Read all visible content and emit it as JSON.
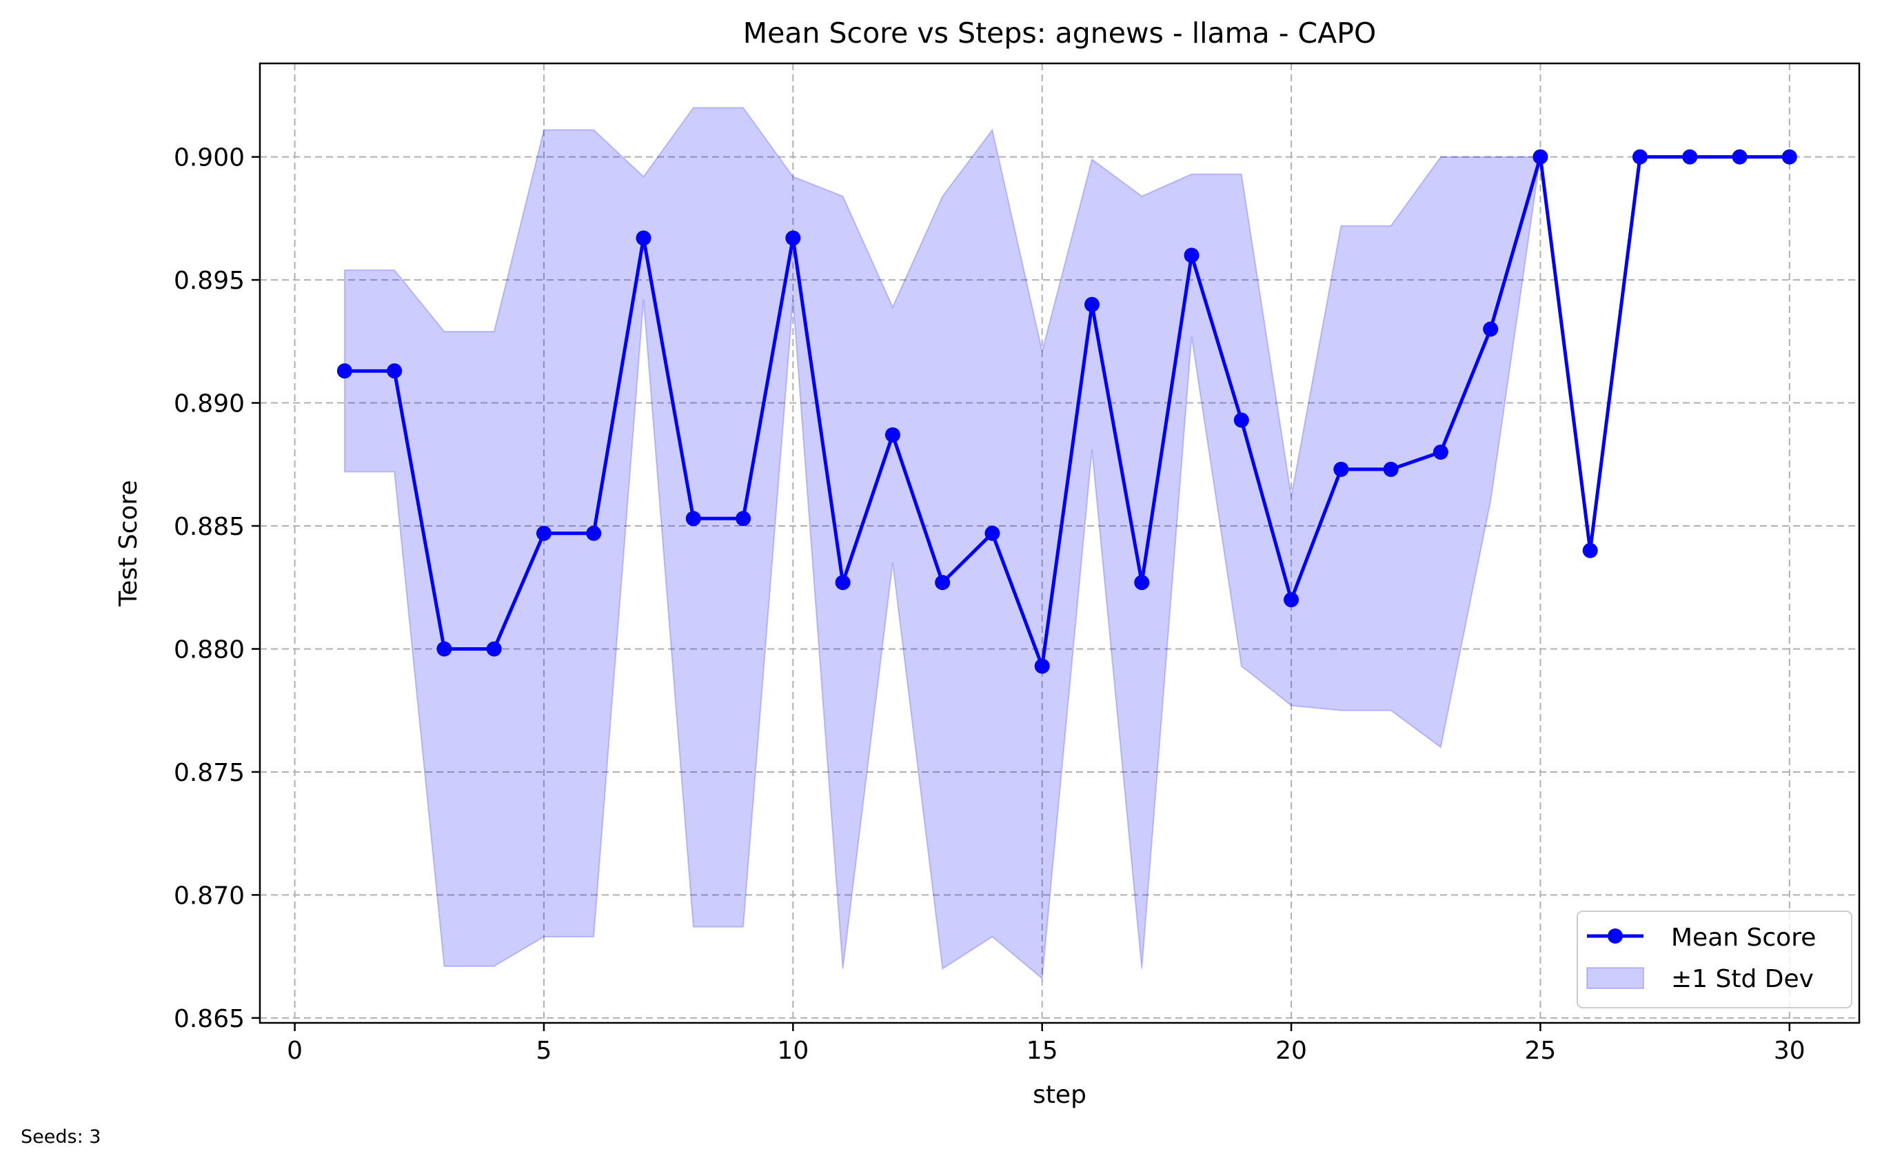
{
  "chart_data": {
    "type": "line",
    "title": "Mean Score vs Steps: agnews - llama - CAPO",
    "xlabel": "step",
    "ylabel": "Test Score",
    "xlim": [
      -0.7,
      31.4
    ],
    "ylim": [
      0.8648,
      0.9038
    ],
    "xticks": [
      0,
      5,
      10,
      15,
      20,
      25,
      30
    ],
    "yticks": [
      0.865,
      0.87,
      0.875,
      0.88,
      0.885,
      0.89,
      0.895,
      0.9
    ],
    "ytick_labels": [
      "0.865",
      "0.870",
      "0.875",
      "0.880",
      "0.885",
      "0.890",
      "0.895",
      "0.900"
    ],
    "grid": true,
    "legend_position": "lower right",
    "x": [
      1,
      2,
      3,
      4,
      5,
      6,
      7,
      8,
      9,
      10,
      11,
      12,
      13,
      14,
      15,
      16,
      17,
      18,
      19,
      20,
      21,
      22,
      23,
      24,
      25,
      26,
      27,
      28,
      29,
      30
    ],
    "series": [
      {
        "name": "Mean Score",
        "color": "#0000ff",
        "values": [
          0.8913,
          0.8913,
          0.88,
          0.88,
          0.8847,
          0.8847,
          0.8967,
          0.8853,
          0.8853,
          0.8967,
          0.8827,
          0.8887,
          0.8827,
          0.8847,
          0.8793,
          0.894,
          0.8827,
          0.896,
          0.8893,
          0.882,
          0.8873,
          0.8873,
          0.888,
          0.893,
          0.9,
          0.884,
          0.9,
          0.9,
          0.9,
          0.9
        ]
      },
      {
        "name": "±1 Std Dev",
        "color": "#0000ff",
        "type": "band",
        "upper": [
          0.8954,
          0.8954,
          0.8929,
          0.8929,
          0.9011,
          0.9011,
          0.8992,
          0.902,
          0.902,
          0.8992,
          0.8984,
          0.8939,
          0.8984,
          0.9011,
          0.8921,
          0.8999,
          0.8984,
          0.8993,
          0.8993,
          0.8862,
          0.8972,
          0.8972,
          0.9,
          0.9,
          0.9,
          null,
          null,
          null,
          null,
          null
        ],
        "lower": [
          0.8872,
          0.8872,
          0.8671,
          0.8671,
          0.8683,
          0.8683,
          0.8942,
          0.8687,
          0.8687,
          0.8942,
          0.867,
          0.8835,
          0.867,
          0.8683,
          0.8666,
          0.8881,
          0.867,
          0.8927,
          0.8793,
          0.8777,
          0.8775,
          0.8775,
          0.876,
          0.886,
          0.9,
          null,
          null,
          null,
          null,
          null
        ]
      }
    ]
  },
  "footer": {
    "seeds": "Seeds: 3"
  }
}
